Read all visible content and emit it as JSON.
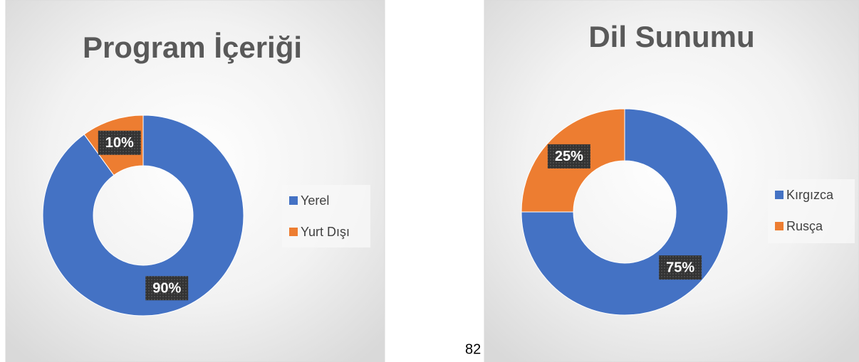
{
  "chart_data": [
    {
      "type": "donut",
      "title": "Program İçeriği",
      "categories": [
        "Yerel",
        "Yurt Dışı"
      ],
      "values": [
        90,
        10
      ],
      "value_labels": [
        "90%",
        "10%"
      ],
      "colors": [
        "#4472c4",
        "#ed7d31"
      ],
      "legend": "right"
    },
    {
      "type": "donut",
      "title": "Dil Sunumu",
      "categories": [
        "Kırgızca",
        "Rusça"
      ],
      "values": [
        75,
        25
      ],
      "value_labels": [
        "75%",
        "25%"
      ],
      "colors": [
        "#4472c4",
        "#ed7d31"
      ],
      "legend": "right"
    }
  ],
  "page_number": "82"
}
